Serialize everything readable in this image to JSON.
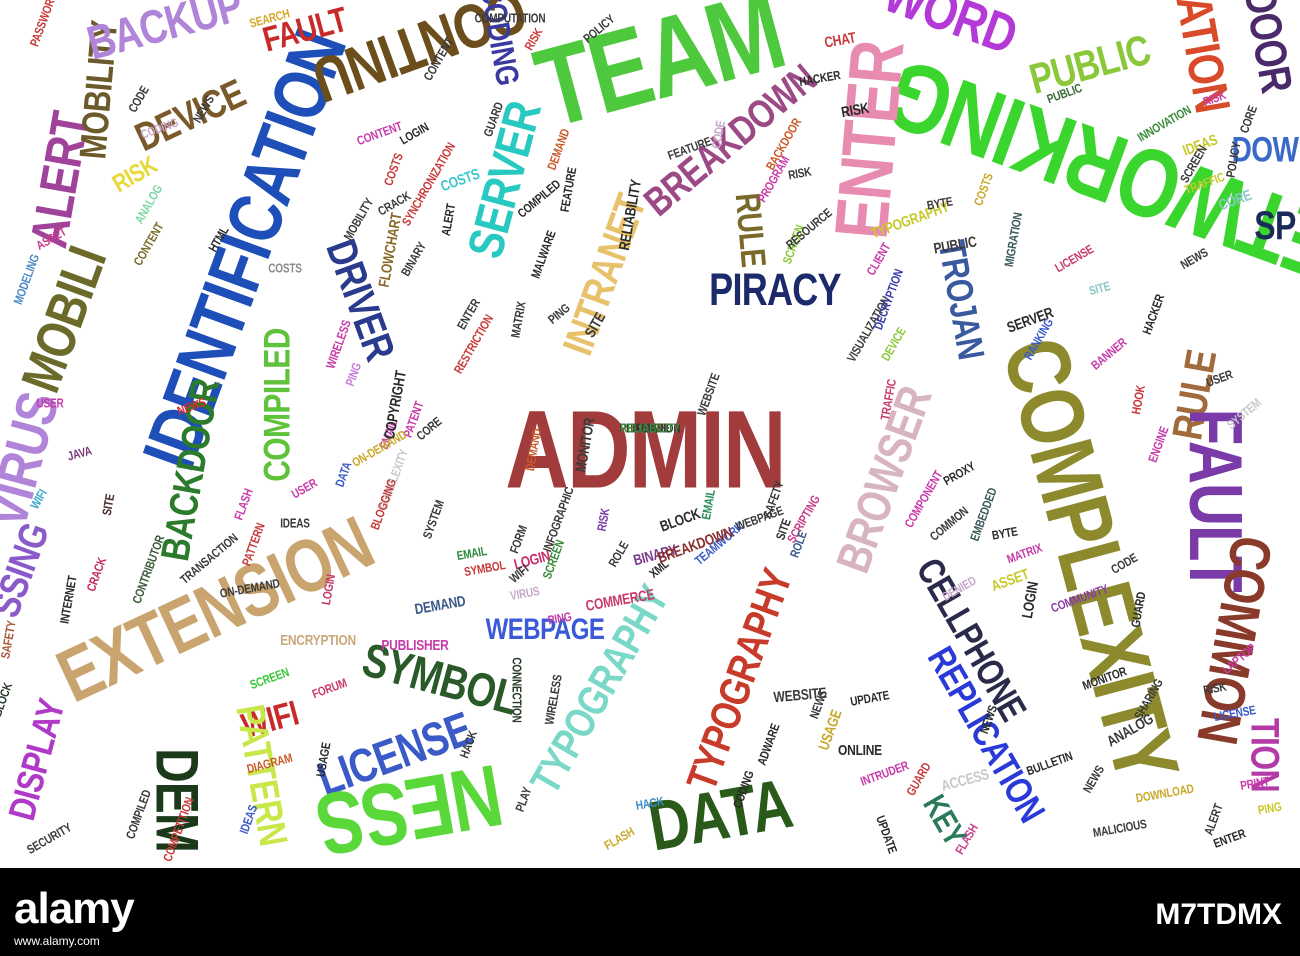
{
  "cloud": {
    "words": [
      {
        "text": "ADMIN",
        "color": "#a23b3b"
      },
      {
        "text": "PIRACY",
        "color": "#1c2a6b"
      },
      {
        "text": "IDENTIFICATION",
        "color": "#1e4fb8"
      },
      {
        "text": "TEAM",
        "color": "#4ec93d"
      },
      {
        "text": "NETWORKING",
        "color": "#3ad62e"
      },
      {
        "text": "COMPLEXITY",
        "color": "#8c8a2c"
      },
      {
        "text": "EXTENSION",
        "color": "#c9a46e"
      },
      {
        "text": "CONTINU",
        "color": "#6b4e1c"
      },
      {
        "text": "ENTER",
        "color": "#e88bb0"
      },
      {
        "text": "INTRANET",
        "color": "#e8c26a"
      },
      {
        "text": "BREAKDOWN",
        "color": "#9c4a86"
      },
      {
        "text": "SERVER",
        "color": "#27c9c0"
      },
      {
        "text": "DRIVER",
        "color": "#2a3a8c"
      },
      {
        "text": "TROJAN",
        "color": "#3a5aa0"
      },
      {
        "text": "BROWSER",
        "color": "#d8b4c2"
      },
      {
        "text": "BACKDOOR",
        "color": "#2c7a2c"
      },
      {
        "text": "COMPILED",
        "color": "#5ec23a"
      },
      {
        "text": "DEVICE",
        "color": "#7a5a2a"
      },
      {
        "text": "ALERT",
        "color": "#a0429a"
      },
      {
        "text": "MOBILITY",
        "color": "#6b5a2a"
      },
      {
        "text": "MOBILI",
        "color": "#6b6a2a"
      },
      {
        "text": "VIRUS",
        "color": "#b084d8"
      },
      {
        "text": "RULE",
        "color": "#7a6a2a"
      },
      {
        "text": "RULE",
        "color": "#a06a3a"
      },
      {
        "text": "FAULT",
        "color": "#7a3aa8"
      },
      {
        "text": "COMMON",
        "color": "#8a3a2a"
      },
      {
        "text": "WEBPAGE",
        "color": "#3a5ad8"
      },
      {
        "text": "SYMBOL",
        "color": "#2a5a2a"
      },
      {
        "text": "LICENSE",
        "color": "#3a5ac8"
      },
      {
        "text": "TYPOGRAPHY",
        "color": "#c83a2a"
      },
      {
        "text": "TYPOGRAPHY",
        "color": "#7ad8c8"
      },
      {
        "text": "CELLPHONE",
        "color": "#2a2a4a"
      },
      {
        "text": "REPLICATION",
        "color": "#2a3ad8"
      },
      {
        "text": "DATA",
        "color": "#2a5a1a"
      },
      {
        "text": "WIFI",
        "color": "#c82a2a"
      },
      {
        "text": "PATTERN",
        "color": "#c8e84a"
      },
      {
        "text": "DEM",
        "color": "#1a3a1a"
      },
      {
        "text": "DISPLAY",
        "color": "#b03ac8"
      },
      {
        "text": "NESS",
        "color": "#5ad83a"
      },
      {
        "text": "SSING",
        "color": "#8a5ac8"
      },
      {
        "text": "KEY",
        "color": "#2a7a5a"
      },
      {
        "text": "PUBLIC",
        "color": "#8ac83a"
      },
      {
        "text": "WORD",
        "color": "#b43ad8"
      },
      {
        "text": "RATION",
        "color": "#d84a2a"
      },
      {
        "text": "DOOR",
        "color": "#4a2a6a"
      },
      {
        "text": "DOW",
        "color": "#3a6ac8"
      },
      {
        "text": "SP",
        "color": "#1a2a5a"
      },
      {
        "text": "TION",
        "color": "#b43aa8"
      },
      {
        "text": "BACKUP",
        "color": "#b084d8"
      },
      {
        "text": "CODING",
        "color": "#3a3aa0"
      },
      {
        "text": "FAULT",
        "color": "#c82a2a"
      },
      {
        "text": "SEARCH",
        "color": "#d8a82a"
      },
      {
        "text": "RISK",
        "color": "#e8d83a"
      },
      {
        "text": "ANALOG",
        "color": "#7ad8a8"
      },
      {
        "text": "CONTENT",
        "color": "#7a6a2a"
      },
      {
        "text": "ASSET",
        "color": "#c83a8a"
      },
      {
        "text": "MODELING",
        "color": "#4a8ac8"
      },
      {
        "text": "COSTS",
        "color": "#8a8a8a"
      },
      {
        "text": "WIRELESS",
        "color": "#c83aa8"
      },
      {
        "text": "PING",
        "color": "#c87ad8"
      },
      {
        "text": "USER",
        "color": "#c83aa8"
      },
      {
        "text": "NEWS",
        "color": "#d82a2a"
      },
      {
        "text": "JAVA",
        "color": "#7a3a7a"
      },
      {
        "text": "WIFI",
        "color": "#3aa8c8"
      },
      {
        "text": "SITE",
        "color": "#4a2a2a"
      },
      {
        "text": "CRACK",
        "color": "#c82a5a"
      },
      {
        "text": "INTERNET",
        "color": "#2a2a2a"
      },
      {
        "text": "SAFETY",
        "color": "#a85a3a"
      },
      {
        "text": "BLOCK",
        "color": "#2a3a2a"
      },
      {
        "text": "EMAIL",
        "color": "#2a8a3a"
      },
      {
        "text": "BINARY",
        "color": "#7a3a8a"
      },
      {
        "text": "LOGIN",
        "color": "#c82a6a"
      },
      {
        "text": "RISK",
        "color": "#7a3aa8"
      },
      {
        "text": "ROLE",
        "color": "#3a3a3a"
      },
      {
        "text": "XML",
        "color": "#2a2a2a"
      },
      {
        "text": "COMMERCE",
        "color": "#c83a6a"
      },
      {
        "text": "PING",
        "color": "#c83aa8"
      },
      {
        "text": "ENCRYPTION",
        "color": "#c8a87a"
      },
      {
        "text": "SCREEN",
        "color": "#3ac83a"
      },
      {
        "text": "FORUM",
        "color": "#c83a6a"
      },
      {
        "text": "DIAGRAM",
        "color": "#c85a2a"
      },
      {
        "text": "USAGE",
        "color": "#2a2a2a"
      },
      {
        "text": "HACK",
        "color": "#3a8ac8"
      },
      {
        "text": "FLASH",
        "color": "#c8a82a"
      },
      {
        "text": "CONNECTION",
        "color": "#2a3a2a"
      },
      {
        "text": "WIRELESS",
        "color": "#3a3a3a"
      },
      {
        "text": "WEBSITE",
        "color": "#3a3a3a"
      },
      {
        "text": "ADWARE",
        "color": "#2a2a2a"
      },
      {
        "text": "NEWS",
        "color": "#3a3a3a"
      },
      {
        "text": "CODING",
        "color": "#2a2a2a"
      },
      {
        "text": "UPDATE",
        "color": "#2a2a2a"
      },
      {
        "text": "USAGE",
        "color": "#c8a82a"
      },
      {
        "text": "INTRUDER",
        "color": "#c83aa8"
      },
      {
        "text": "GUARD",
        "color": "#c83a3a"
      },
      {
        "text": "ONLINE",
        "color": "#2a2a2a"
      },
      {
        "text": "ACCESS",
        "color": "#c8c8c8"
      },
      {
        "text": "FLASH",
        "color": "#c83a8a"
      },
      {
        "text": "BULLETIN",
        "color": "#2a2a2a"
      },
      {
        "text": "NEWS",
        "color": "#3a3a3a"
      },
      {
        "text": "DOWNLOAD",
        "color": "#c8a82a"
      },
      {
        "text": "ALERT",
        "color": "#3a3a3a"
      },
      {
        "text": "ENTER",
        "color": "#2a2a2a"
      },
      {
        "text": "PRINT",
        "color": "#c83aa8"
      },
      {
        "text": "PING",
        "color": "#c8c82a"
      },
      {
        "text": "ANALOG",
        "color": "#3a3a3a"
      },
      {
        "text": "SHARING",
        "color": "#3a3a3a"
      },
      {
        "text": "LICENSE",
        "color": "#3a5ac8"
      },
      {
        "text": "RISK",
        "color": "#3a3a3a"
      },
      {
        "text": "LAPTOP",
        "color": "#c83aa8"
      },
      {
        "text": "MONITOR",
        "color": "#2a2a2a"
      },
      {
        "text": "CODE",
        "color": "#3a3a3a"
      },
      {
        "text": "GUARD",
        "color": "#2a2a2a"
      },
      {
        "text": "LOGIN",
        "color": "#2a2a2a"
      },
      {
        "text": "ASSET",
        "color": "#c8c82a"
      },
      {
        "text": "DENIED",
        "color": "#c8a8c8"
      },
      {
        "text": "COMMUNITY",
        "color": "#8a3aa8"
      },
      {
        "text": "MATRIX",
        "color": "#c83aa8"
      },
      {
        "text": "BYTE",
        "color": "#2a2a2a"
      },
      {
        "text": "COMMON",
        "color": "#3a3a3a"
      },
      {
        "text": "EMBEDDED",
        "color": "#3a5a5a"
      },
      {
        "text": "COMPONENT",
        "color": "#c83aa8"
      },
      {
        "text": "PROXY",
        "color": "#2a2a2a"
      },
      {
        "text": "TRAFFIC",
        "color": "#c83a6a"
      },
      {
        "text": "DEVICE",
        "color": "#8ac83a"
      },
      {
        "text": "VISUALIZATION",
        "color": "#3a3a3a"
      },
      {
        "text": "DECRYPTION",
        "color": "#3a3aa8"
      },
      {
        "text": "CLIENT",
        "color": "#c83aa8"
      },
      {
        "text": "PUBLIC",
        "color": "#3a3a3a"
      },
      {
        "text": "TYPOGRAPHY",
        "color": "#c8c82a"
      },
      {
        "text": "BYTE",
        "color": "#3a3a3a"
      },
      {
        "text": "COSTS",
        "color": "#c8a82a"
      },
      {
        "text": "MIGRATION",
        "color": "#3a5a5a"
      },
      {
        "text": "LICENSE",
        "color": "#c83a6a"
      },
      {
        "text": "SITE",
        "color": "#8ac8c8"
      },
      {
        "text": "SERVER",
        "color": "#2a2a2a"
      },
      {
        "text": "RANKING",
        "color": "#3a5ac8"
      },
      {
        "text": "HACKER",
        "color": "#2a2a2a"
      },
      {
        "text": "BANNER",
        "color": "#c83aa8"
      },
      {
        "text": "HOOK",
        "color": "#c83a3a"
      },
      {
        "text": "USER",
        "color": "#3a3a3a"
      },
      {
        "text": "SYSTEM",
        "color": "#c8c8c8"
      },
      {
        "text": "ENGINE",
        "color": "#c83aa8"
      },
      {
        "text": "PUBLIC",
        "color": "#3a6a3a"
      },
      {
        "text": "INNOVATION",
        "color": "#3a8a3a"
      },
      {
        "text": "RISK",
        "color": "#c83aa8"
      },
      {
        "text": "IDEAS",
        "color": "#c8c82a"
      },
      {
        "text": "SCREEN",
        "color": "#3a3a3a"
      },
      {
        "text": "POLICY",
        "color": "#3a3a3a"
      },
      {
        "text": "TRAFFIC",
        "color": "#c8c82a"
      },
      {
        "text": "CORE",
        "color": "#8ac8c8"
      },
      {
        "text": "CORE",
        "color": "#3a3a3a"
      },
      {
        "text": "NEWS",
        "color": "#3a3a3a"
      },
      {
        "text": "CHAT",
        "color": "#c83a3a"
      },
      {
        "text": "HACKER",
        "color": "#2a2a2a"
      },
      {
        "text": "RISK",
        "color": "#2a2a2a"
      },
      {
        "text": "CODE",
        "color": "#c8a8c8"
      },
      {
        "text": "BACKDOOR",
        "color": "#c85a2a"
      },
      {
        "text": "RISK",
        "color": "#3a3a3a"
      },
      {
        "text": "PROGRAM",
        "color": "#c83aa8"
      },
      {
        "text": "SCREEN",
        "color": "#8ac83a"
      },
      {
        "text": "RESOURCE",
        "color": "#3a3a3a"
      },
      {
        "text": "FEATURE",
        "color": "#3a3a3a"
      },
      {
        "text": "DEMAND",
        "color": "#c85a2a"
      },
      {
        "text": "RELIABILITY",
        "color": "#2a2a2a"
      },
      {
        "text": "FEATURE",
        "color": "#2a2a2a"
      },
      {
        "text": "COMPILED",
        "color": "#2a2a2a"
      },
      {
        "text": "MALWARE",
        "color": "#2a2a2a"
      },
      {
        "text": "COSTS",
        "color": "#3ac8c8"
      },
      {
        "text": "SYNCHRONIZATION",
        "color": "#c83a3a"
      },
      {
        "text": "LOGIN",
        "color": "#2a2a2a"
      },
      {
        "text": "CONTENT",
        "color": "#c83aa8"
      },
      {
        "text": "COSTS",
        "color": "#c83a3a"
      },
      {
        "text": "MOBILITY",
        "color": "#3a3a3a"
      },
      {
        "text": "FLOWCHART",
        "color": "#8a6a2a"
      },
      {
        "text": "CRACK",
        "color": "#3a3a3a"
      },
      {
        "text": "BINARY",
        "color": "#3a3a3a"
      },
      {
        "text": "ALERT",
        "color": "#2a2a2a"
      },
      {
        "text": "ENTER",
        "color": "#3a3a3a"
      },
      {
        "text": "MATRIX",
        "color": "#3a3a3a"
      },
      {
        "text": "RESTRICTION",
        "color": "#c83a3a"
      },
      {
        "text": "PING",
        "color": "#3a3a3a"
      },
      {
        "text": "SITE",
        "color": "#3a3a3a"
      },
      {
        "text": "WEBSITE",
        "color": "#3a3a3a"
      },
      {
        "text": "MONITOR",
        "color": "#3a3a3a"
      },
      {
        "text": "DEMAND",
        "color": "#c85a2a"
      },
      {
        "text": "EMAIL",
        "color": "#c83aa8"
      },
      {
        "text": "PATENT",
        "color": "#c83aa8"
      },
      {
        "text": "CORE",
        "color": "#3a3a3a"
      },
      {
        "text": "ON-DEMAND",
        "color": "#c8a82a"
      },
      {
        "text": "COPYRIGHT",
        "color": "#2a2a2a"
      },
      {
        "text": "COMPLEXITY",
        "color": "#c8c8c8"
      },
      {
        "text": "BLOGGING",
        "color": "#c83a3a"
      },
      {
        "text": "DATA",
        "color": "#3a5ac8"
      },
      {
        "text": "USER",
        "color": "#c83aa8"
      },
      {
        "text": "IDEAS",
        "color": "#3a3a3a"
      },
      {
        "text": "PATTERN",
        "color": "#c83a3a"
      },
      {
        "text": "FLASH",
        "color": "#c83aa8"
      },
      {
        "text": "ON-DEMAND",
        "color": "#3a3a3a"
      },
      {
        "text": "SYSTEM",
        "color": "#3a3a3a"
      },
      {
        "text": "FORM",
        "color": "#3a3a3a"
      },
      {
        "text": "SCREEN",
        "color": "#3a8a3a"
      },
      {
        "text": "SYMBOL",
        "color": "#c83a3a"
      },
      {
        "text": "VIRUS",
        "color": "#c8a8c8"
      },
      {
        "text": "WIFI",
        "color": "#3a3a3a"
      },
      {
        "text": "DEMAND",
        "color": "#3a5a8a"
      },
      {
        "text": "PUBLISHER",
        "color": "#c83aa8"
      },
      {
        "text": "LOGIN",
        "color": "#c83a6a"
      },
      {
        "text": "EMAIL",
        "color": "#2a8a5a"
      },
      {
        "text": "TEAMWORK",
        "color": "#3a5ac8"
      },
      {
        "text": "BLOCK",
        "color": "#2a2a2a"
      },
      {
        "text": "BREAKDOWN",
        "color": "#8a2a2a"
      },
      {
        "text": "SAFETY",
        "color": "#3a3a3a"
      },
      {
        "text": "WEBPAGE",
        "color": "#3a3a3a"
      },
      {
        "text": "SITE",
        "color": "#2a2a2a"
      },
      {
        "text": "SCRIPTING",
        "color": "#c83a8a"
      },
      {
        "text": "ROLE",
        "color": "#3a5a8a"
      },
      {
        "text": "CONTRIBUTOR",
        "color": "#3a5a3a"
      },
      {
        "text": "HTML",
        "color": "#2a2a2a"
      },
      {
        "text": "CODING",
        "color": "#c8a8c8"
      },
      {
        "text": "NEWS",
        "color": "#3a3a3a"
      },
      {
        "text": "CODE",
        "color": "#3a3a3a"
      },
      {
        "text": "GUARD",
        "color": "#3a3a3a"
      },
      {
        "text": "CONTENT",
        "color": "#3a3a3a"
      },
      {
        "text": "POLICY",
        "color": "#3a3a3a"
      },
      {
        "text": "RISK",
        "color": "#c83a3a"
      },
      {
        "text": "COMPUTATION",
        "color": "#3a3a3a"
      },
      {
        "text": "PASSWORD",
        "color": "#c83a3a"
      },
      {
        "text": "COMPILED",
        "color": "#3a3a3a"
      },
      {
        "text": "COMPETITION",
        "color": "#c83a3a"
      },
      {
        "text": "IDEAS",
        "color": "#3a5ac8"
      },
      {
        "text": "HACK",
        "color": "#3a3a3a"
      },
      {
        "text": "PLAY",
        "color": "#3a3a3a"
      },
      {
        "text": "TRANSACTION",
        "color": "#3a3a3a"
      },
      {
        "text": "SECURITY",
        "color": "#3a3a3a"
      },
      {
        "text": "INFOGRAPHIC",
        "color": "#3a3a3a"
      },
      {
        "text": "UPDATE",
        "color": "#2a2a2a"
      },
      {
        "text": "NEWS",
        "color": "#2a2a2a"
      },
      {
        "text": "MALICIOUS",
        "color": "#3a3a3a"
      },
      {
        "text": "SAFETY",
        "color": "#c8c82a"
      },
      {
        "text": "BLOCK",
        "color": "#c83a3a"
      },
      {
        "text": "UPDATE",
        "color": "#3a3a3a"
      },
      {
        "text": "USER",
        "color": "#3a3a3a"
      },
      {
        "text": "PERMISSION",
        "color": "#3a3a3a"
      },
      {
        "text": "RELIABILITY",
        "color": "#3a8a3a"
      }
    ]
  },
  "footer": {
    "logo": "alamy",
    "tagline": "www.alamy.com",
    "image_id": "M7TDMX"
  }
}
